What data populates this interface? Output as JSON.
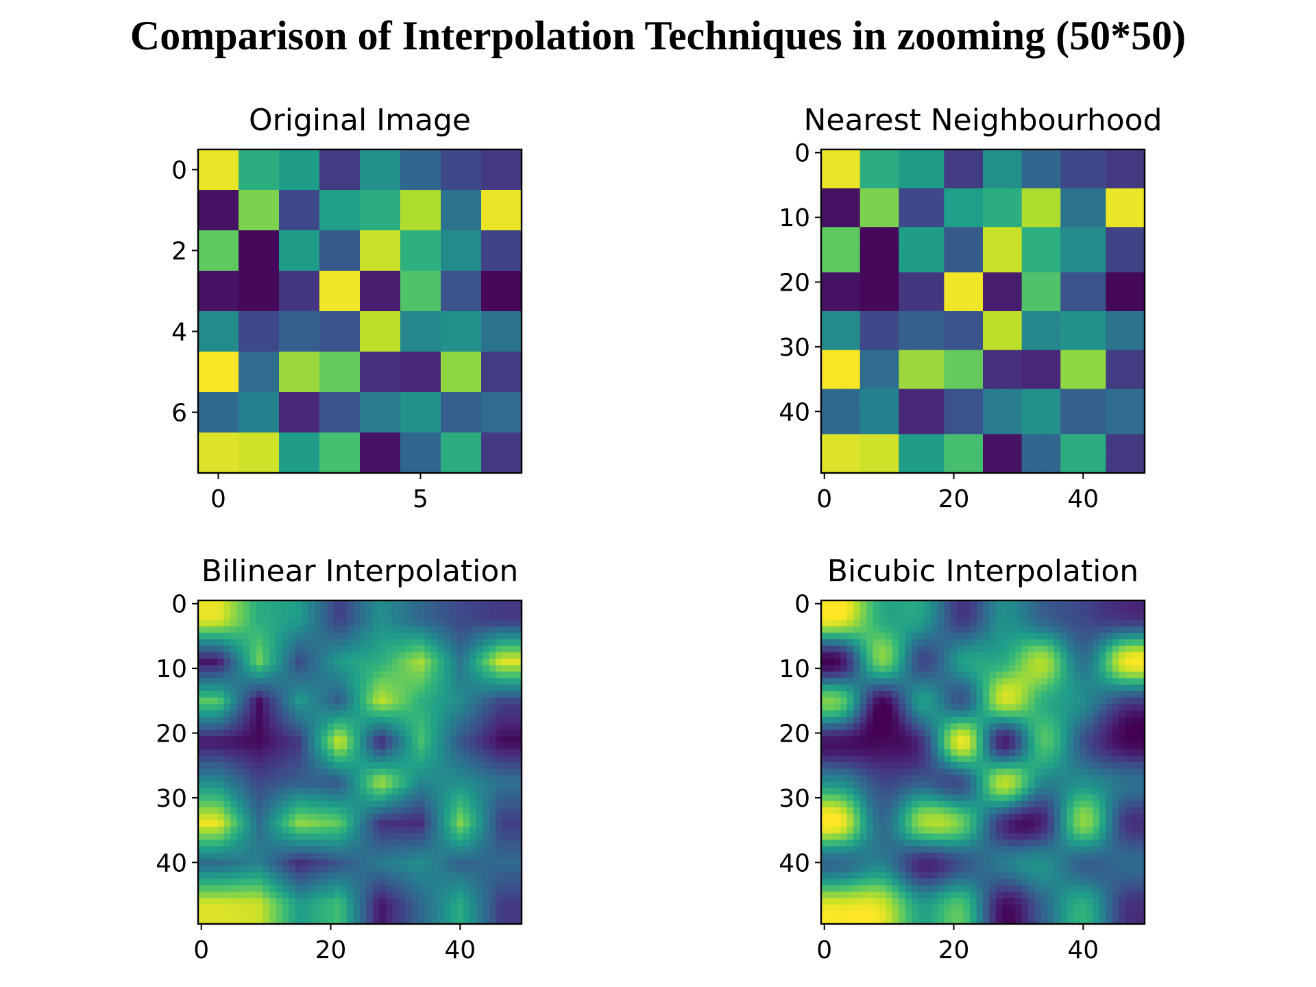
{
  "figure": {
    "title": "Comparison of Interpolation Techniques in zooming (50*50)"
  },
  "colormap": {
    "name": "viridis",
    "stops": [
      "#440154",
      "#482878",
      "#3e4a89",
      "#31688e",
      "#26828e",
      "#1f9e89",
      "#35b779",
      "#6ece58",
      "#b5de2b",
      "#fde725"
    ]
  },
  "chart_data": [
    {
      "type": "heatmap",
      "title": "Original Image",
      "size": 8,
      "render": "nearest",
      "xticks": [
        0,
        5
      ],
      "yticks": [
        0,
        2,
        4,
        6
      ],
      "values": [
        [
          0.97,
          0.62,
          0.55,
          0.18,
          0.5,
          0.33,
          0.22,
          0.17
        ],
        [
          0.05,
          0.8,
          0.22,
          0.56,
          0.62,
          0.88,
          0.38,
          0.97
        ],
        [
          0.75,
          0.02,
          0.55,
          0.28,
          0.92,
          0.63,
          0.48,
          0.2
        ],
        [
          0.05,
          0.02,
          0.16,
          0.98,
          0.08,
          0.72,
          0.26,
          0.02
        ],
        [
          0.48,
          0.22,
          0.3,
          0.26,
          0.9,
          0.46,
          0.5,
          0.38
        ],
        [
          0.99,
          0.35,
          0.85,
          0.76,
          0.14,
          0.11,
          0.83,
          0.18
        ],
        [
          0.34,
          0.44,
          0.11,
          0.26,
          0.42,
          0.5,
          0.3,
          0.35
        ],
        [
          0.95,
          0.93,
          0.55,
          0.7,
          0.05,
          0.33,
          0.62,
          0.17
        ]
      ]
    },
    {
      "type": "heatmap",
      "title": "Nearest Neighbourhood",
      "size": 50,
      "render": "nearest",
      "xticks": [
        0,
        20,
        40
      ],
      "yticks": [
        0,
        10,
        20,
        30,
        40
      ]
    },
    {
      "type": "heatmap",
      "title": "Bilinear Interpolation",
      "size": 50,
      "render": "bilinear",
      "xticks": [
        0,
        20,
        40
      ],
      "yticks": [
        0,
        10,
        20,
        30,
        40
      ]
    },
    {
      "type": "heatmap",
      "title": "Bicubic Interpolation",
      "size": 50,
      "render": "bicubic",
      "xticks": [
        0,
        20,
        40
      ],
      "yticks": [
        0,
        10,
        20,
        30,
        40
      ]
    }
  ]
}
